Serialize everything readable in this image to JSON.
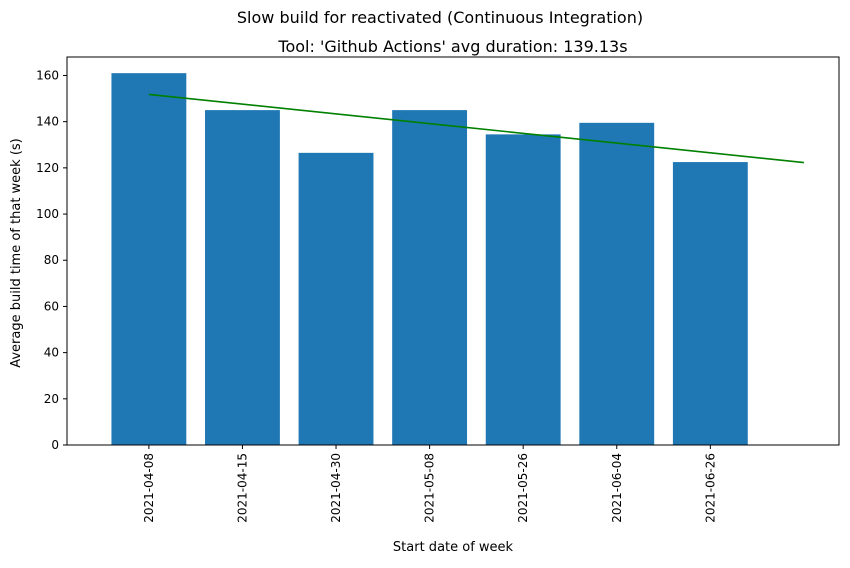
{
  "chart_data": {
    "type": "bar",
    "suptitle": "Slow build for reactivated (Continuous Integration)",
    "title": "Tool: 'Github Actions' avg duration: 139.13s",
    "xlabel": "Start date of week",
    "ylabel": "Average build time of that week (s)",
    "categories": [
      "2021-04-08",
      "2021-04-15",
      "2021-04-30",
      "2021-05-08",
      "2021-05-26",
      "2021-06-04",
      "2021-06-26"
    ],
    "values": [
      161,
      145,
      126.5,
      145,
      134.5,
      139.5,
      122.5
    ],
    "ylim": [
      0,
      168
    ],
    "yticks": [
      0,
      20,
      40,
      60,
      80,
      100,
      120,
      140,
      160
    ],
    "trendline": {
      "x_start": 0,
      "x_end": 7,
      "y_start": 151.8,
      "y_end": 122.3
    },
    "bar_color": "#1f77b4",
    "trend_color": "#008000",
    "grid": false,
    "legend": "none"
  }
}
